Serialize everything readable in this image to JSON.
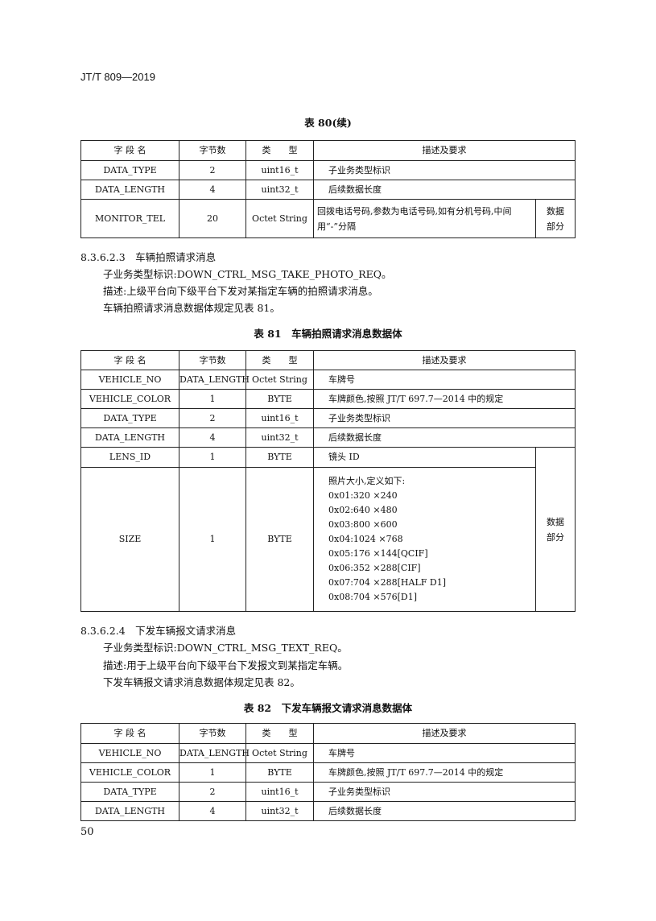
{
  "header": "JT/T 809—2019",
  "page_number": "50",
  "col_headers": [
    "字 段 名",
    "字节数",
    "类　　型",
    "描述及要求"
  ],
  "data_part": "数据\n部分",
  "table80": {
    "caption": "表 80(续)",
    "rows": [
      [
        "DATA_TYPE",
        "2",
        "uint16_t",
        "子业务类型标识"
      ],
      [
        "DATA_LENGTH",
        "4",
        "uint32_t",
        "后续数据长度"
      ],
      [
        "MONITOR_TEL",
        "20",
        "Octet String",
        "回拨电话号码,参数为电话号码,如有分机号码,中间用“-”分隔"
      ]
    ]
  },
  "sec1": {
    "title": "8.3.6.2.3　车辆拍照请求消息",
    "lines": [
      "子业务类型标识:DOWN_CTRL_MSG_TAKE_PHOTO_REQ。",
      "描述:上级平台向下级平台下发对某指定车辆的拍照请求消息。",
      "车辆拍照请求消息数据体规定见表 81。"
    ]
  },
  "table81": {
    "caption": "表 81　车辆拍照请求消息数据体",
    "rows": [
      [
        "VEHICLE_NO",
        "DATA_LENGTH",
        "Octet String",
        "车牌号"
      ],
      [
        "VEHICLE_COLOR",
        "1",
        "BYTE",
        "车牌颜色,按照 JT/T 697.7—2014 中的规定"
      ],
      [
        "DATA_TYPE",
        "2",
        "uint16_t",
        "子业务类型标识"
      ],
      [
        "DATA_LENGTH",
        "4",
        "uint32_t",
        "后续数据长度"
      ],
      [
        "LENS_ID",
        "1",
        "BYTE",
        "镜头 ID"
      ]
    ],
    "size_row": {
      "field": "SIZE",
      "bytes": "1",
      "type": "BYTE",
      "desc": [
        "照片大小,定义如下:",
        "0x01:320 ×240",
        "0x02:640 ×480",
        "0x03:800 ×600",
        "0x04:1024 ×768",
        "0x05:176 ×144[QCIF]",
        "0x06:352 ×288[CIF]",
        "0x07:704 ×288[HALF D1]",
        "0x08:704 ×576[D1]"
      ]
    }
  },
  "sec2": {
    "title": "8.3.6.2.4　下发车辆报文请求消息",
    "lines": [
      "子业务类型标识:DOWN_CTRL_MSG_TEXT_REQ。",
      "描述:用于上级平台向下级平台下发报文到某指定车辆。",
      "下发车辆报文请求消息数据体规定见表 82。"
    ]
  },
  "table82": {
    "caption": "表 82　下发车辆报文请求消息数据体",
    "rows": [
      [
        "VEHICLE_NO",
        "DATA_LENGTH",
        "Octet String",
        "车牌号"
      ],
      [
        "VEHICLE_COLOR",
        "1",
        "BYTE",
        "车牌颜色,按照 JT/T 697.7—2014 中的规定"
      ],
      [
        "DATA_TYPE",
        "2",
        "uint16_t",
        "子业务类型标识"
      ],
      [
        "DATA_LENGTH",
        "4",
        "uint32_t",
        "后续数据长度"
      ]
    ]
  }
}
